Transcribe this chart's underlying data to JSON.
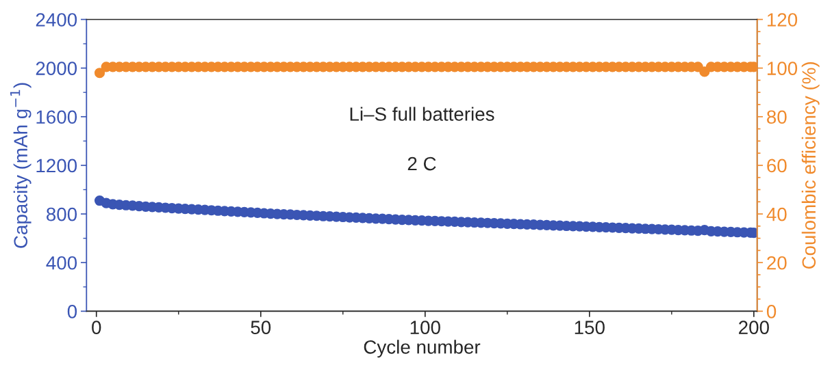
{
  "chart_data": {
    "type": "scatter",
    "xlabel": "Cycle number",
    "ylabel": "Capacity (mAh g$^{−1}$)",
    "y2label": "Coulombic efficiency (%)",
    "annotations": [
      "Li–S full batteries",
      "2 C"
    ],
    "xlim": [
      -3,
      201
    ],
    "xticks": [
      0,
      50,
      100,
      150,
      200
    ],
    "ylim": [
      0,
      2400
    ],
    "yticks": [
      0,
      400,
      800,
      1200,
      1600,
      2000,
      2400
    ],
    "y2lim": [
      0,
      120
    ],
    "y2ticks": [
      0,
      20,
      40,
      60,
      80,
      100,
      120
    ],
    "marker": "circle",
    "grid": false,
    "x": [
      1,
      3,
      5,
      7,
      9,
      11,
      13,
      15,
      17,
      19,
      21,
      23,
      25,
      27,
      29,
      31,
      33,
      35,
      37,
      39,
      41,
      43,
      45,
      47,
      49,
      51,
      53,
      55,
      57,
      59,
      61,
      63,
      65,
      67,
      69,
      71,
      73,
      75,
      77,
      79,
      81,
      83,
      85,
      87,
      89,
      91,
      93,
      95,
      97,
      99,
      101,
      103,
      105,
      107,
      109,
      111,
      113,
      115,
      117,
      119,
      121,
      123,
      125,
      127,
      129,
      131,
      133,
      135,
      137,
      139,
      141,
      143,
      145,
      147,
      149,
      151,
      153,
      155,
      157,
      159,
      161,
      163,
      165,
      167,
      169,
      171,
      173,
      175,
      177,
      179,
      181,
      183,
      185,
      187,
      189,
      191,
      193,
      195,
      197,
      199,
      200
    ],
    "series": [
      {
        "color": "#3a55b4",
        "values": [
          910,
          890,
          880,
          876,
          872,
          868,
          864,
          860,
          857,
          854,
          851,
          848,
          845,
          842,
          839,
          836,
          833,
          830,
          827,
          824,
          821,
          818,
          815,
          812,
          809,
          806,
          803,
          800,
          797,
          795,
          792,
          790,
          787,
          785,
          782,
          780,
          777,
          775,
          772,
          770,
          767,
          765,
          762,
          760,
          757,
          755,
          752,
          750,
          748,
          746,
          744,
          742,
          740,
          738,
          736,
          734,
          732,
          730,
          728,
          726,
          724,
          722,
          720,
          718,
          716,
          714,
          712,
          710,
          708,
          706,
          704,
          702,
          700,
          698,
          696,
          694,
          692,
          690,
          688,
          686,
          684,
          682,
          680,
          678,
          676,
          674,
          672,
          670,
          668,
          666,
          664,
          662,
          668,
          658,
          656,
          654,
          652,
          650,
          648,
          646,
          645
        ]
      },
      {
        "color": "#f08a2c",
        "axis": "y2",
        "values": [
          98,
          100.5,
          100.5,
          100.5,
          100.5,
          100.5,
          100.5,
          100.5,
          100.5,
          100.5,
          100.5,
          100.5,
          100.5,
          100.5,
          100.5,
          100.5,
          100.5,
          100.5,
          100.5,
          100.5,
          100.5,
          100.5,
          100.5,
          100.5,
          100.5,
          100.5,
          100.5,
          100.5,
          100.5,
          100.5,
          100.5,
          100.5,
          100.5,
          100.5,
          100.5,
          100.5,
          100.5,
          100.5,
          100.5,
          100.5,
          100.5,
          100.5,
          100.5,
          100.5,
          100.5,
          100.5,
          100.5,
          100.5,
          100.5,
          100.5,
          100.5,
          100.5,
          100.5,
          100.5,
          100.5,
          100.5,
          100.5,
          100.5,
          100.5,
          100.5,
          100.5,
          100.5,
          100.5,
          100.5,
          100.5,
          100.5,
          100.5,
          100.5,
          100.5,
          100.5,
          100.5,
          100.5,
          100.5,
          100.5,
          100.5,
          100.5,
          100.5,
          100.5,
          100.5,
          100.5,
          100.5,
          100.5,
          100.5,
          100.5,
          100.5,
          100.5,
          100.5,
          100.5,
          100.5,
          100.5,
          100.5,
          100.5,
          98.5,
          100.5,
          100.5,
          100.5,
          100.5,
          100.5,
          100.5,
          100.5,
          100.5
        ]
      }
    ]
  }
}
